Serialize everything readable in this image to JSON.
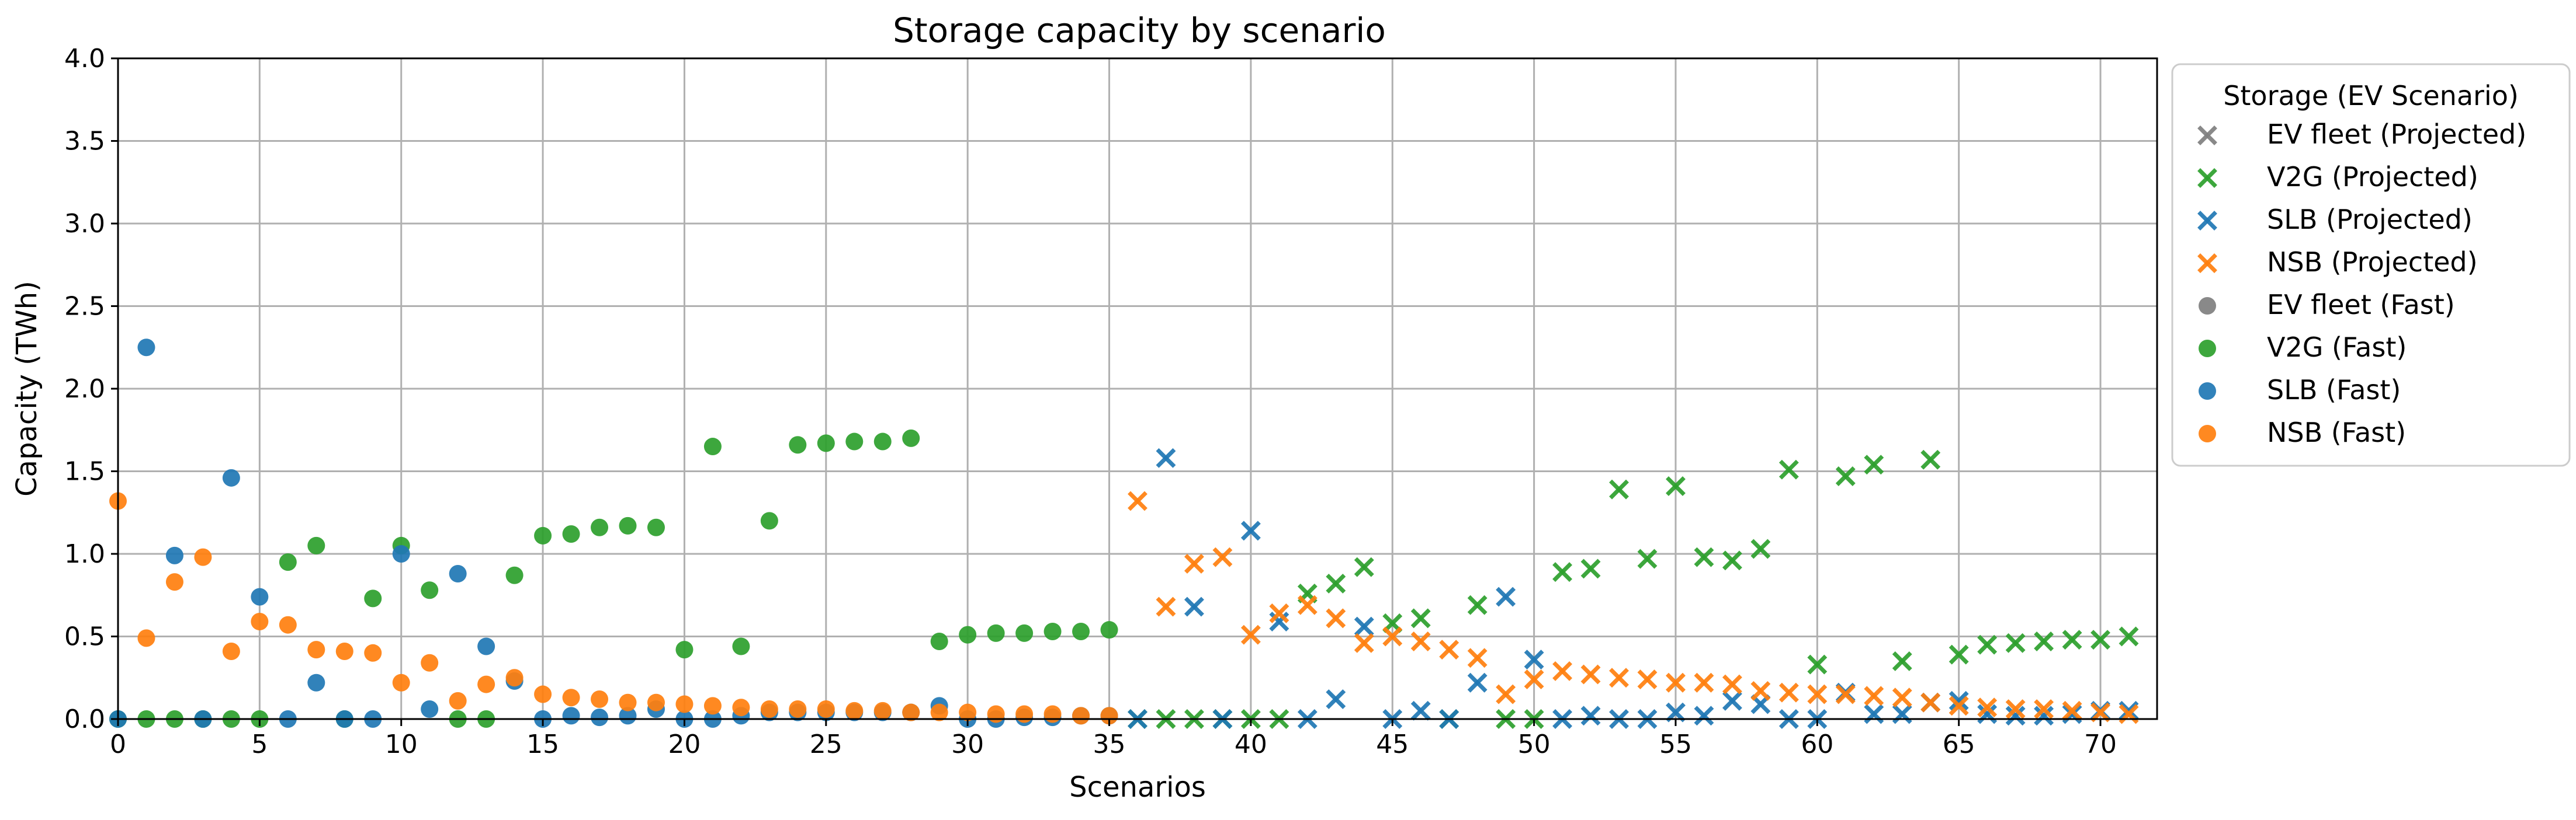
{
  "chart_data": {
    "type": "scatter",
    "title": "Storage capacity by scenario",
    "xlabel": "Scenarios",
    "ylabel": "Capacity (TWh)",
    "xlim": [
      0,
      72
    ],
    "ylim": [
      0,
      4.0
    ],
    "xticks": [
      0,
      5,
      10,
      15,
      20,
      25,
      30,
      35,
      40,
      45,
      50,
      55,
      60,
      65,
      70
    ],
    "yticks": [
      0.0,
      0.5,
      1.0,
      1.5,
      2.0,
      2.5,
      3.0,
      3.5,
      4.0
    ],
    "grid": true,
    "legend": {
      "title": "Storage (EV Scenario)",
      "placement": "outside-right-top",
      "entries": [
        {
          "label": "EV fleet (Projected)",
          "series": "ev_proj"
        },
        {
          "label": "V2G (Projected)",
          "series": "v2g_proj"
        },
        {
          "label": "SLB (Projected)",
          "series": "slb_proj"
        },
        {
          "label": "NSB (Projected)",
          "series": "nsb_proj"
        },
        {
          "label": "EV fleet (Fast)",
          "series": "ev_fast"
        },
        {
          "label": "V2G (Fast)",
          "series": "v2g_fast"
        },
        {
          "label": "SLB (Fast)",
          "series": "slb_fast"
        },
        {
          "label": "NSB (Fast)",
          "series": "nsb_fast"
        }
      ]
    },
    "series": [
      {
        "id": "ev_fast",
        "name": "EV fleet (Fast)",
        "marker": "circle",
        "color": "#7f7f7f",
        "points": []
      },
      {
        "id": "v2g_fast",
        "name": "V2G (Fast)",
        "marker": "circle",
        "color": "#2ca02c",
        "points": [
          [
            0,
            0.0
          ],
          [
            1,
            0.0
          ],
          [
            2,
            0.0
          ],
          [
            3,
            0.0
          ],
          [
            4,
            0.0
          ],
          [
            5,
            0.0
          ],
          [
            6,
            0.95
          ],
          [
            7,
            1.05
          ],
          [
            8,
            0.0
          ],
          [
            9,
            0.73
          ],
          [
            10,
            1.05
          ],
          [
            11,
            0.78
          ],
          [
            12,
            0.0
          ],
          [
            13,
            0.0
          ],
          [
            14,
            0.87
          ],
          [
            15,
            1.11
          ],
          [
            16,
            1.12
          ],
          [
            17,
            1.16
          ],
          [
            18,
            1.17
          ],
          [
            19,
            1.16
          ],
          [
            20,
            0.42
          ],
          [
            21,
            1.65
          ],
          [
            22,
            0.44
          ],
          [
            23,
            1.2
          ],
          [
            24,
            1.66
          ],
          [
            25,
            1.67
          ],
          [
            26,
            1.68
          ],
          [
            27,
            1.68
          ],
          [
            28,
            1.7
          ],
          [
            29,
            0.47
          ],
          [
            30,
            0.51
          ],
          [
            31,
            0.52
          ],
          [
            32,
            0.52
          ],
          [
            33,
            0.53
          ],
          [
            34,
            0.53
          ],
          [
            35,
            0.54
          ]
        ]
      },
      {
        "id": "slb_fast",
        "name": "SLB (Fast)",
        "marker": "circle",
        "color": "#1f77b4",
        "points": [
          [
            0,
            0.0
          ],
          [
            1,
            2.25
          ],
          [
            2,
            0.99
          ],
          [
            3,
            0.0
          ],
          [
            4,
            1.46
          ],
          [
            5,
            0.74
          ],
          [
            6,
            0.0
          ],
          [
            7,
            0.22
          ],
          [
            8,
            0.0
          ],
          [
            9,
            0.0
          ],
          [
            10,
            1.0
          ],
          [
            11,
            0.06
          ],
          [
            12,
            0.88
          ],
          [
            13,
            0.44
          ],
          [
            14,
            0.23
          ],
          [
            15,
            0.0
          ],
          [
            16,
            0.02
          ],
          [
            17,
            0.01
          ],
          [
            18,
            0.02
          ],
          [
            19,
            0.06
          ],
          [
            20,
            0.0
          ],
          [
            21,
            0.0
          ],
          [
            22,
            0.02
          ],
          [
            23,
            0.04
          ],
          [
            24,
            0.04
          ],
          [
            25,
            0.04
          ],
          [
            26,
            0.04
          ],
          [
            27,
            0.04
          ],
          [
            28,
            0.04
          ],
          [
            29,
            0.08
          ],
          [
            30,
            0.0
          ],
          [
            31,
            0.0
          ],
          [
            32,
            0.01
          ],
          [
            33,
            0.01
          ],
          [
            34,
            0.02
          ],
          [
            35,
            0.02
          ]
        ]
      },
      {
        "id": "nsb_fast",
        "name": "NSB (Fast)",
        "marker": "circle",
        "color": "#ff7f0e",
        "points": [
          [
            0,
            1.32
          ],
          [
            1,
            0.49
          ],
          [
            2,
            0.83
          ],
          [
            3,
            0.98
          ],
          [
            4,
            0.41
          ],
          [
            5,
            0.59
          ],
          [
            6,
            0.57
          ],
          [
            7,
            0.42
          ],
          [
            8,
            0.41
          ],
          [
            9,
            0.4
          ],
          [
            10,
            0.22
          ],
          [
            11,
            0.34
          ],
          [
            12,
            0.11
          ],
          [
            13,
            0.21
          ],
          [
            14,
            0.25
          ],
          [
            15,
            0.15
          ],
          [
            16,
            0.13
          ],
          [
            17,
            0.12
          ],
          [
            18,
            0.1
          ],
          [
            19,
            0.1
          ],
          [
            20,
            0.09
          ],
          [
            21,
            0.08
          ],
          [
            22,
            0.07
          ],
          [
            23,
            0.06
          ],
          [
            24,
            0.06
          ],
          [
            25,
            0.06
          ],
          [
            26,
            0.05
          ],
          [
            27,
            0.05
          ],
          [
            28,
            0.04
          ],
          [
            29,
            0.04
          ],
          [
            30,
            0.04
          ],
          [
            31,
            0.03
          ],
          [
            32,
            0.03
          ],
          [
            33,
            0.03
          ],
          [
            34,
            0.02
          ],
          [
            35,
            0.02
          ]
        ]
      },
      {
        "id": "ev_proj",
        "name": "EV fleet (Projected)",
        "marker": "x",
        "color": "#7f7f7f",
        "points": []
      },
      {
        "id": "v2g_proj",
        "name": "V2G (Projected)",
        "marker": "x",
        "color": "#2ca02c",
        "points": [
          [
            36,
            0.0
          ],
          [
            37,
            0.0
          ],
          [
            38,
            0.0
          ],
          [
            39,
            0.0
          ],
          [
            40,
            0.0
          ],
          [
            41,
            0.0
          ],
          [
            42,
            0.76
          ],
          [
            43,
            0.82
          ],
          [
            44,
            0.92
          ],
          [
            45,
            0.58
          ],
          [
            46,
            0.61
          ],
          [
            47,
            0.0
          ],
          [
            48,
            0.69
          ],
          [
            49,
            0.0
          ],
          [
            50,
            0.0
          ],
          [
            51,
            0.89
          ],
          [
            52,
            0.91
          ],
          [
            53,
            1.39
          ],
          [
            54,
            0.97
          ],
          [
            55,
            1.41
          ],
          [
            56,
            0.98
          ],
          [
            57,
            0.96
          ],
          [
            58,
            1.03
          ],
          [
            59,
            1.51
          ],
          [
            60,
            0.33
          ],
          [
            61,
            1.47
          ],
          [
            62,
            1.54
          ],
          [
            63,
            0.35
          ],
          [
            64,
            1.57
          ],
          [
            65,
            0.39
          ],
          [
            66,
            0.45
          ],
          [
            67,
            0.46
          ],
          [
            68,
            0.47
          ],
          [
            69,
            0.48
          ],
          [
            70,
            0.48
          ],
          [
            71,
            0.5
          ]
        ]
      },
      {
        "id": "slb_proj",
        "name": "SLB (Projected)",
        "marker": "x",
        "color": "#1f77b4",
        "points": [
          [
            36,
            0.0
          ],
          [
            37,
            1.58
          ],
          [
            38,
            0.68
          ],
          [
            39,
            0.0
          ],
          [
            40,
            1.14
          ],
          [
            41,
            0.59
          ],
          [
            42,
            0.0
          ],
          [
            43,
            0.12
          ],
          [
            44,
            0.56
          ],
          [
            45,
            0.0
          ],
          [
            46,
            0.05
          ],
          [
            47,
            0.0
          ],
          [
            48,
            0.22
          ],
          [
            49,
            0.74
          ],
          [
            50,
            0.36
          ],
          [
            51,
            0.0
          ],
          [
            52,
            0.02
          ],
          [
            53,
            0.0
          ],
          [
            54,
            0.0
          ],
          [
            55,
            0.04
          ],
          [
            56,
            0.02
          ],
          [
            57,
            0.11
          ],
          [
            58,
            0.09
          ],
          [
            59,
            0.0
          ],
          [
            60,
            0.0
          ],
          [
            61,
            0.16
          ],
          [
            62,
            0.03
          ],
          [
            63,
            0.03
          ],
          [
            64,
            0.1
          ],
          [
            65,
            0.11
          ],
          [
            66,
            0.03
          ],
          [
            67,
            0.02
          ],
          [
            68,
            0.02
          ],
          [
            69,
            0.03
          ],
          [
            70,
            0.05
          ],
          [
            71,
            0.05
          ]
        ]
      },
      {
        "id": "nsb_proj",
        "name": "NSB (Projected)",
        "marker": "x",
        "color": "#ff7f0e",
        "points": [
          [
            36,
            1.32
          ],
          [
            37,
            0.68
          ],
          [
            38,
            0.94
          ],
          [
            39,
            0.98
          ],
          [
            40,
            0.51
          ],
          [
            41,
            0.64
          ],
          [
            42,
            0.69
          ],
          [
            43,
            0.61
          ],
          [
            44,
            0.46
          ],
          [
            45,
            0.5
          ],
          [
            46,
            0.47
          ],
          [
            47,
            0.42
          ],
          [
            48,
            0.37
          ],
          [
            49,
            0.15
          ],
          [
            50,
            0.24
          ],
          [
            51,
            0.29
          ],
          [
            52,
            0.27
          ],
          [
            53,
            0.25
          ],
          [
            54,
            0.24
          ],
          [
            55,
            0.22
          ],
          [
            56,
            0.22
          ],
          [
            57,
            0.21
          ],
          [
            58,
            0.17
          ],
          [
            59,
            0.16
          ],
          [
            60,
            0.15
          ],
          [
            61,
            0.15
          ],
          [
            62,
            0.14
          ],
          [
            63,
            0.13
          ],
          [
            64,
            0.1
          ],
          [
            65,
            0.08
          ],
          [
            66,
            0.07
          ],
          [
            67,
            0.06
          ],
          [
            68,
            0.06
          ],
          [
            69,
            0.05
          ],
          [
            70,
            0.04
          ],
          [
            71,
            0.03
          ]
        ]
      }
    ]
  }
}
